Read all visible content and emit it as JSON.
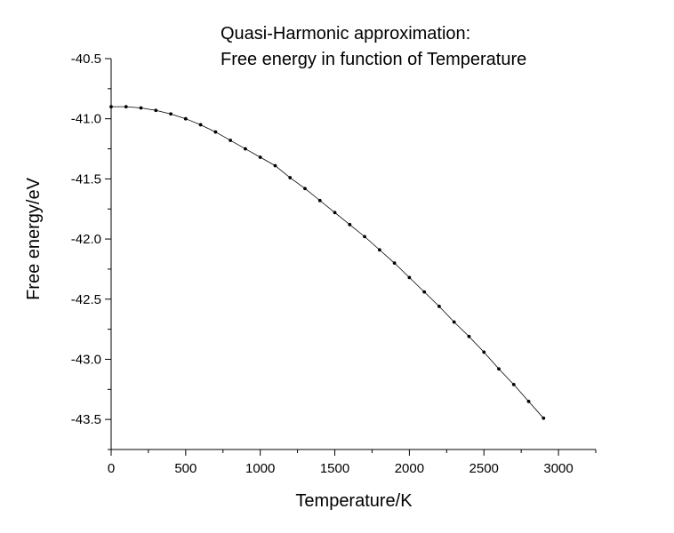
{
  "chart_data": {
    "type": "line",
    "title_lines": [
      "Quasi-Harmonic approximation:",
      "Free energy in function of Temperature"
    ],
    "xlabel": "Temperature/K",
    "ylabel": "Free energy/eV",
    "xlim": [
      0,
      3250
    ],
    "ylim": [
      -43.75,
      -40.5
    ],
    "xticks": [
      0,
      500,
      1000,
      1500,
      2000,
      2500,
      3000
    ],
    "xtick_labels": [
      "0",
      "500",
      "1000",
      "1500",
      "2000",
      "2500",
      "3000"
    ],
    "yticks": [
      -40.5,
      -41.0,
      -41.5,
      -42.0,
      -42.5,
      -43.0,
      -43.5
    ],
    "ytick_labels": [
      "-40.5",
      "-41.0",
      "-41.5",
      "-42.0",
      "-42.5",
      "-43.0",
      "-43.5"
    ],
    "grid": false,
    "line_color": "#000000",
    "series": [
      {
        "x": [
          0,
          100,
          200,
          300,
          400,
          500,
          600,
          700,
          800,
          900,
          1000,
          1100,
          1200,
          1300,
          1400,
          1500,
          1600,
          1700,
          1800,
          1900,
          2000,
          2100,
          2200,
          2300,
          2400,
          2500,
          2600,
          2700,
          2800,
          2900
        ],
        "y": [
          -40.9,
          -40.9,
          -40.91,
          -40.93,
          -40.96,
          -41.0,
          -41.05,
          -41.11,
          -41.18,
          -41.25,
          -41.32,
          -41.39,
          -41.49,
          -41.58,
          -41.68,
          -41.78,
          -41.88,
          -41.98,
          -42.09,
          -42.2,
          -42.32,
          -42.44,
          -42.56,
          -42.69,
          -42.81,
          -42.94,
          -43.08,
          -43.21,
          -43.35,
          -43.49
        ]
      }
    ]
  }
}
